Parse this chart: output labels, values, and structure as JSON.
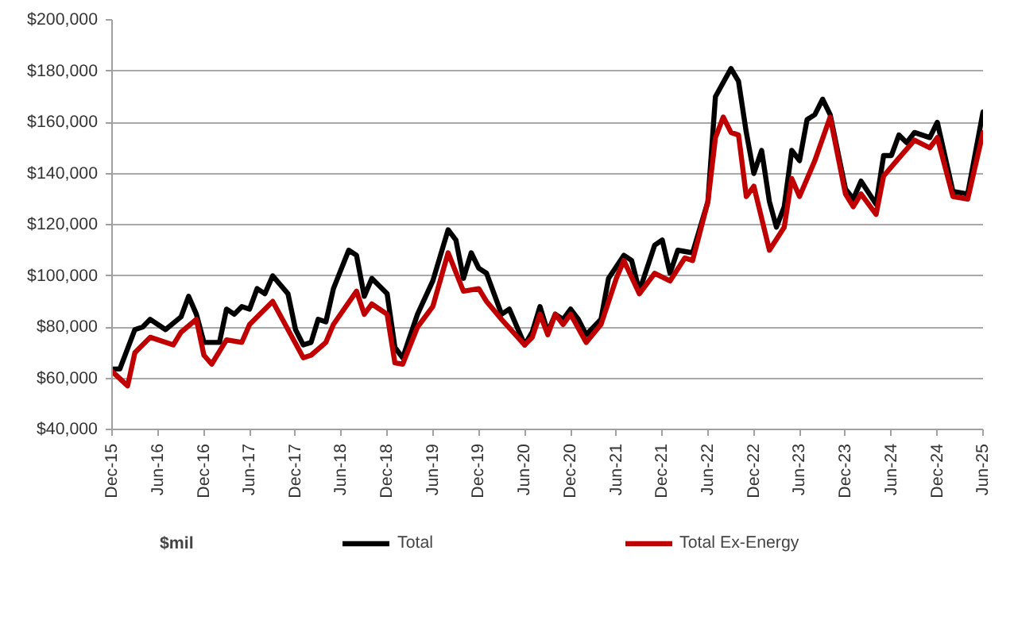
{
  "chart_data": {
    "type": "line",
    "xlim": [
      "2015-12",
      "2025-06"
    ],
    "xticks": [
      {
        "value": "2015-12",
        "label": "Dec-15"
      },
      {
        "value": "2016-06",
        "label": "Jun-16"
      },
      {
        "value": "2016-12",
        "label": "Dec-16"
      },
      {
        "value": "2017-06",
        "label": "Jun-17"
      },
      {
        "value": "2017-12",
        "label": "Dec-17"
      },
      {
        "value": "2018-06",
        "label": "Jun-18"
      },
      {
        "value": "2018-12",
        "label": "Dec-18"
      },
      {
        "value": "2019-06",
        "label": "Jun-19"
      },
      {
        "value": "2019-12",
        "label": "Dec-19"
      },
      {
        "value": "2020-06",
        "label": "Jun-20"
      },
      {
        "value": "2020-12",
        "label": "Dec-20"
      },
      {
        "value": "2021-06",
        "label": "Jun-21"
      },
      {
        "value": "2021-12",
        "label": "Dec-21"
      },
      {
        "value": "2022-06",
        "label": "Jun-22"
      },
      {
        "value": "2022-12",
        "label": "Dec-22"
      },
      {
        "value": "2023-06",
        "label": "Jun-23"
      },
      {
        "value": "2023-12",
        "label": "Dec-23"
      },
      {
        "value": "2024-06",
        "label": "Jun-24"
      },
      {
        "value": "2024-12",
        "label": "Dec-24"
      },
      {
        "value": "2025-06",
        "label": "Jun-25"
      }
    ],
    "ylim": [
      40000,
      200000
    ],
    "yticks": [
      {
        "value": 40000,
        "label": "$40,000"
      },
      {
        "value": 60000,
        "label": "$60,000"
      },
      {
        "value": 80000,
        "label": "$80,000"
      },
      {
        "value": 100000,
        "label": "$100,000"
      },
      {
        "value": 120000,
        "label": "$120,000"
      },
      {
        "value": 140000,
        "label": "$140,000"
      },
      {
        "value": 160000,
        "label": "$160,000"
      },
      {
        "value": 180000,
        "label": "$180,000"
      },
      {
        "value": 200000,
        "label": "$200,000"
      }
    ],
    "grid": "y",
    "legend": "bottom",
    "line_style": "solid",
    "annotations": [
      "$mil"
    ],
    "series": [
      {
        "name": "Total",
        "color": "#000000",
        "x": [
          "2015-12",
          "2016-01",
          "2016-03",
          "2016-04",
          "2016-05",
          "2016-07",
          "2016-09",
          "2016-10",
          "2016-11",
          "2016-12",
          "2017-02",
          "2017-03",
          "2017-04",
          "2017-05",
          "2017-06",
          "2017-07",
          "2017-08",
          "2017-09",
          "2017-11",
          "2017-12",
          "2018-01",
          "2018-02",
          "2018-03",
          "2018-04",
          "2018-05",
          "2018-07",
          "2018-08",
          "2018-09",
          "2018-10",
          "2018-12",
          "2019-01",
          "2019-02",
          "2019-04",
          "2019-06",
          "2019-08",
          "2019-09",
          "2019-10",
          "2019-11",
          "2019-12",
          "2020-01",
          "2020-03",
          "2020-04",
          "2020-06",
          "2020-07",
          "2020-08",
          "2020-09",
          "2020-10",
          "2020-11",
          "2020-12",
          "2021-01",
          "2021-02",
          "2021-04",
          "2021-05",
          "2021-07",
          "2021-08",
          "2021-09",
          "2021-11",
          "2021-12",
          "2022-01",
          "2022-02",
          "2022-04",
          "2022-06",
          "2022-07",
          "2022-09",
          "2022-10",
          "2022-11",
          "2022-12",
          "2023-01",
          "2023-02",
          "2023-03",
          "2023-04",
          "2023-05",
          "2023-06",
          "2023-07",
          "2023-08",
          "2023-09",
          "2023-10",
          "2023-12",
          "2024-01",
          "2024-02",
          "2024-04",
          "2024-05",
          "2024-06",
          "2024-07",
          "2024-08",
          "2024-09",
          "2024-11",
          "2024-12",
          "2025-02",
          "2025-04",
          "2025-06"
        ],
        "values": [
          63600,
          63600,
          79000,
          80000,
          83000,
          79000,
          84000,
          92000,
          85000,
          74000,
          74000,
          87000,
          85000,
          88000,
          87000,
          95000,
          93000,
          100000,
          93000,
          79000,
          73000,
          74000,
          83000,
          82000,
          95000,
          110000,
          108000,
          92000,
          99000,
          93000,
          72000,
          68000,
          85000,
          98000,
          118000,
          114000,
          99000,
          109000,
          103000,
          101000,
          85000,
          87000,
          73000,
          78000,
          88000,
          78000,
          85000,
          83000,
          87000,
          83000,
          77000,
          83000,
          99000,
          108000,
          106000,
          94000,
          112000,
          114000,
          101000,
          110000,
          109000,
          129000,
          170000,
          181000,
          176000,
          156000,
          140000,
          149000,
          129000,
          119000,
          127000,
          149000,
          145000,
          161000,
          163000,
          169000,
          163000,
          134000,
          130000,
          137000,
          128000,
          147000,
          147000,
          155000,
          152000,
          156000,
          154000,
          160000,
          133000,
          132000,
          164000
        ]
      },
      {
        "name": "Total Ex-Energy",
        "color": "#c00000",
        "x": [
          "2015-12",
          "2016-02",
          "2016-03",
          "2016-05",
          "2016-08",
          "2016-09",
          "2016-11",
          "2016-12",
          "2017-01",
          "2017-03",
          "2017-05",
          "2017-06",
          "2017-09",
          "2017-11",
          "2018-01",
          "2018-02",
          "2018-04",
          "2018-05",
          "2018-08",
          "2018-09",
          "2018-10",
          "2018-12",
          "2019-01",
          "2019-02",
          "2019-04",
          "2019-06",
          "2019-08",
          "2019-10",
          "2019-12",
          "2020-01",
          "2020-03",
          "2020-06",
          "2020-07",
          "2020-08",
          "2020-09",
          "2020-10",
          "2020-11",
          "2020-12",
          "2021-02",
          "2021-04",
          "2021-06",
          "2021-07",
          "2021-09",
          "2021-11",
          "2022-01",
          "2022-03",
          "2022-04",
          "2022-06",
          "2022-07",
          "2022-08",
          "2022-09",
          "2022-10",
          "2022-11",
          "2022-12",
          "2023-02",
          "2023-04",
          "2023-05",
          "2023-06",
          "2023-08",
          "2023-10",
          "2023-12",
          "2024-01",
          "2024-02",
          "2024-04",
          "2024-05",
          "2024-07",
          "2024-09",
          "2024-11",
          "2024-12",
          "2025-02",
          "2025-04",
          "2025-06"
        ],
        "values": [
          62700,
          57000,
          70000,
          76000,
          73000,
          78000,
          83000,
          69000,
          65500,
          75000,
          74000,
          81000,
          90000,
          79000,
          68000,
          69000,
          74000,
          81000,
          94000,
          85000,
          89000,
          85000,
          66000,
          65500,
          80000,
          88000,
          109000,
          94000,
          95000,
          90000,
          83000,
          73000,
          76000,
          85000,
          77000,
          85000,
          81000,
          85000,
          74000,
          81000,
          99000,
          106000,
          93000,
          101000,
          98000,
          107000,
          106000,
          129000,
          154000,
          162000,
          156000,
          155000,
          131000,
          135000,
          110000,
          119000,
          138000,
          131000,
          145000,
          162000,
          132000,
          127000,
          132000,
          124000,
          139000,
          146000,
          153000,
          150000,
          154000,
          131000,
          130000,
          156000
        ]
      }
    ]
  }
}
